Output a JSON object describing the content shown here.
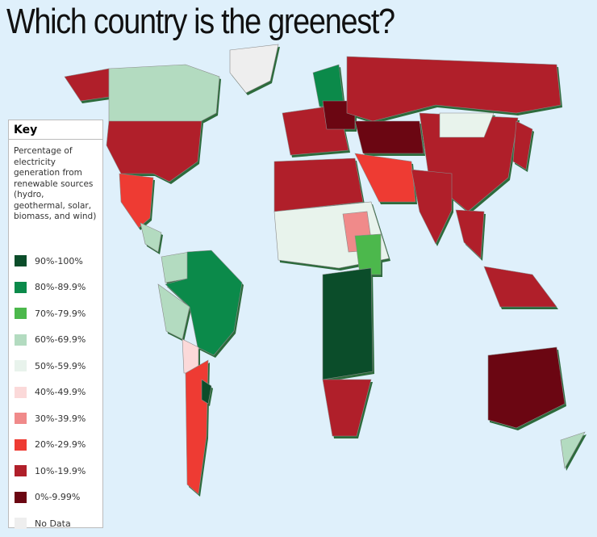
{
  "title": "Which country is the greenest?",
  "key": {
    "title": "Key",
    "description": "Percentage of electricity generation from renewable sources (hydro, geothermal, solar, biomass, and wind)",
    "items": [
      {
        "label": "90%-100%",
        "color": "#0b4d2a"
      },
      {
        "label": "80%-89.9%",
        "color": "#0b8a4a"
      },
      {
        "label": "70%-79.9%",
        "color": "#4cb84c"
      },
      {
        "label": "60%-69.9%",
        "color": "#b3dbc0"
      },
      {
        "label": "50%-59.9%",
        "color": "#e8f3ec"
      },
      {
        "label": "40%-49.9%",
        "color": "#fbd9d9"
      },
      {
        "label": "30%-39.9%",
        "color": "#f08a8a"
      },
      {
        "label": "20%-29.9%",
        "color": "#ee3b33"
      },
      {
        "label": "10%-19.9%",
        "color": "#b01f2a"
      },
      {
        "label": "0%-9.99%",
        "color": "#6b0612"
      },
      {
        "label": "No Data",
        "color": "#eeeeee"
      }
    ]
  }
}
